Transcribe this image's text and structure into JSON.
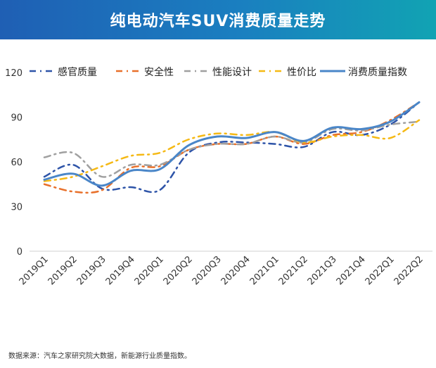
{
  "title": "纯电动汽车SUV消费质量走势",
  "source": "数据来源：汽车之家研究院大数据，新能源行业质量指数。",
  "chart_data": {
    "type": "line",
    "title": "纯电动汽车SUV消费质量走势",
    "categories": [
      "2019Q1",
      "2019Q2",
      "2019Q3",
      "2019Q4",
      "2020Q1",
      "2020Q2",
      "2020Q3",
      "2020Q4",
      "2021Q1",
      "2021Q2",
      "2021Q3",
      "2021Q4",
      "2022Q1",
      "2022Q2"
    ],
    "ylim": [
      0,
      120
    ],
    "yticks": [
      0,
      30,
      60,
      90,
      120
    ],
    "grid": false,
    "legend": "top",
    "series": [
      {
        "name": "感官质量",
        "color": "#2e54a8",
        "style": "dash-dot",
        "values": [
          50,
          58,
          42,
          43,
          41,
          66,
          73,
          73,
          72,
          70,
          80,
          78,
          85,
          100
        ]
      },
      {
        "name": "安全性",
        "color": "#e8702a",
        "style": "dash-dot",
        "values": [
          45,
          40,
          41,
          56,
          57,
          68,
          72,
          72,
          77,
          72,
          78,
          80,
          88,
          100
        ]
      },
      {
        "name": "性能设计",
        "color": "#a0a0a0",
        "style": "dash-dot",
        "values": [
          63,
          66,
          50,
          58,
          58,
          68,
          72,
          72,
          77,
          73,
          82,
          81,
          85,
          87
        ]
      },
      {
        "name": "性价比",
        "color": "#f5b915",
        "style": "dash-dot",
        "values": [
          47,
          50,
          57,
          64,
          66,
          75,
          79,
          78,
          80,
          73,
          77,
          78,
          76,
          88
        ]
      },
      {
        "name": "消费质量指数",
        "color": "#4a86c8",
        "style": "solid",
        "values": [
          48,
          52,
          44,
          54,
          55,
          71,
          77,
          76,
          80,
          74,
          83,
          82,
          87,
          100
        ]
      }
    ]
  }
}
